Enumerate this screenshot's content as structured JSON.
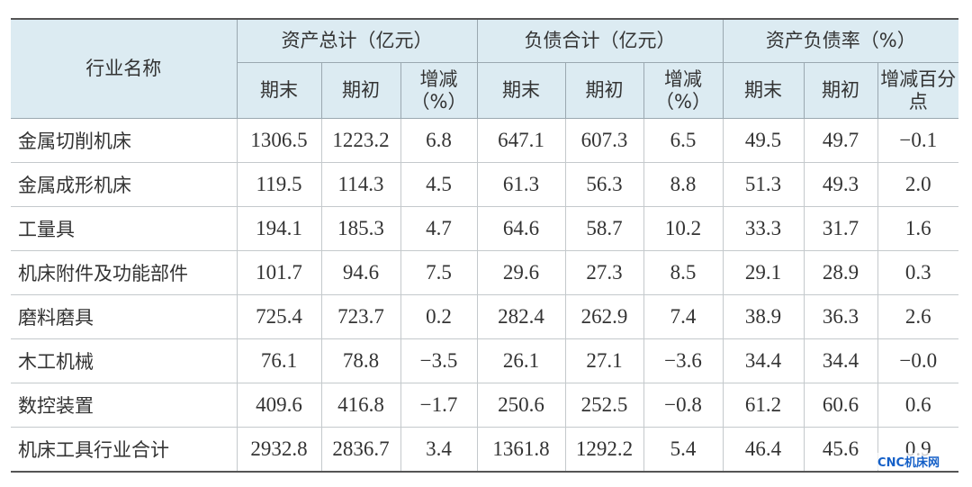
{
  "header": {
    "row_label": "行业名称",
    "groups": [
      {
        "title": "资产总计（亿元）",
        "subcolumns": [
          "期末",
          "期初",
          "增减（%）"
        ]
      },
      {
        "title": "负债合计（亿元）",
        "subcolumns": [
          "期末",
          "期初",
          "增减（%）"
        ]
      },
      {
        "title": "资产负债率（%）",
        "subcolumns": [
          "期末",
          "期初",
          "增减百分点"
        ]
      }
    ]
  },
  "table": {
    "rows": [
      [
        "金属切削机床",
        "1306.5",
        "1223.2",
        "6.8",
        "647.1",
        "607.3",
        "6.5",
        "49.5",
        "49.7",
        "−0.1"
      ],
      [
        "金属成形机床",
        "119.5",
        "114.3",
        "4.5",
        "61.3",
        "56.3",
        "8.8",
        "51.3",
        "49.3",
        "2.0"
      ],
      [
        "工量具",
        "194.1",
        "185.3",
        "4.7",
        "64.6",
        "58.7",
        "10.2",
        "33.3",
        "31.7",
        "1.6"
      ],
      [
        "机床附件及功能部件",
        "101.7",
        "94.6",
        "7.5",
        "29.6",
        "27.3",
        "8.5",
        "29.1",
        "28.9",
        "0.3"
      ],
      [
        "磨料磨具",
        "725.4",
        "723.7",
        "0.2",
        "282.4",
        "262.9",
        "7.4",
        "38.9",
        "36.3",
        "2.6"
      ],
      [
        "木工机械",
        "76.1",
        "78.8",
        "−3.5",
        "26.1",
        "27.1",
        "−3.6",
        "34.4",
        "34.4",
        "−0.0"
      ],
      [
        "数控装置",
        "409.6",
        "416.8",
        "−1.7",
        "250.6",
        "252.5",
        "−0.8",
        "61.2",
        "60.6",
        "0.6"
      ],
      [
        "机床工具行业合计",
        "2932.8",
        "2836.7",
        "3.4",
        "1361.8",
        "1292.2",
        "5.4",
        "46.4",
        "45.6",
        "0.9"
      ]
    ]
  },
  "watermark": "CNC机床网"
}
